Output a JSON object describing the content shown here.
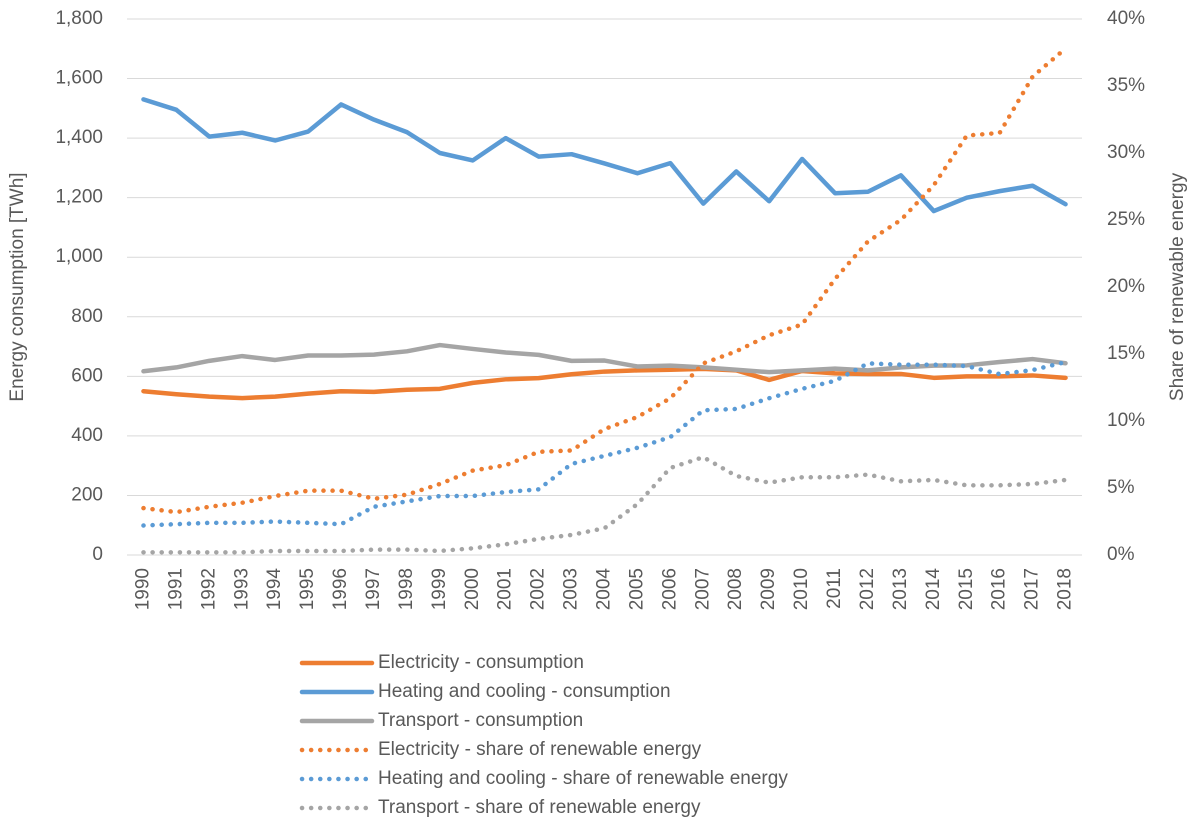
{
  "chart_data": {
    "type": "line",
    "y_label": "Energy consumption [TWh]",
    "y2_label": "Share of renewable energy",
    "categories": [
      "1990",
      "1991",
      "1992",
      "1993",
      "1994",
      "1995",
      "1996",
      "1997",
      "1998",
      "1999",
      "2000",
      "2001",
      "2002",
      "2003",
      "2004",
      "2005",
      "2006",
      "2007",
      "2008",
      "2009",
      "2010",
      "2011",
      "2012",
      "2013",
      "2014",
      "2015",
      "2016",
      "2017",
      "2018"
    ],
    "ylim": [
      0,
      1800
    ],
    "yticks": [
      0,
      200,
      400,
      600,
      800,
      {
        "value": 1000,
        "label": "1,000"
      },
      {
        "value": 1200,
        "label": "1,200"
      },
      {
        "value": 1400,
        "label": "1,400"
      },
      {
        "value": 1600,
        "label": "1,600"
      },
      {
        "value": 1800,
        "label": "1,800"
      }
    ],
    "y2lim": [
      0,
      40
    ],
    "y2ticks": [
      {
        "value": 0,
        "label": "0%"
      },
      {
        "value": 5,
        "label": "5%"
      },
      {
        "value": 10,
        "label": "10%"
      },
      {
        "value": 15,
        "label": "15%"
      },
      {
        "value": 20,
        "label": "20%"
      },
      {
        "value": 25,
        "label": "25%"
      },
      {
        "value": 30,
        "label": "30%"
      },
      {
        "value": 35,
        "label": "35%"
      },
      {
        "value": 40,
        "label": "40%"
      }
    ],
    "grid": true,
    "legend": "bottom",
    "series": [
      {
        "name": "Electricity - consumption",
        "color": "#ed7d31",
        "line_style": "solid",
        "values": [
          550,
          540,
          532,
          527,
          532,
          542,
          550,
          548,
          555,
          558,
          578,
          590,
          594,
          607,
          616,
          620,
          622,
          625,
          620,
          588,
          618,
          610,
          608,
          608,
          595,
          600,
          600,
          603,
          595
        ]
      },
      {
        "name": "Heating and cooling - consumption",
        "color": "#5b9bd5",
        "line_style": "solid",
        "values": [
          1530,
          1495,
          1405,
          1418,
          1392,
          1422,
          1513,
          1462,
          1420,
          1350,
          1325,
          1400,
          1338,
          1346,
          1315,
          1282,
          1316,
          1180,
          1288,
          1188,
          1330,
          1215,
          1220,
          1275,
          1155,
          1200,
          1222,
          1240,
          1178
        ]
      },
      {
        "name": "Transport - consumption",
        "color": "#a5a5a5",
        "line_style": "solid",
        "values": [
          617,
          630,
          652,
          668,
          655,
          670,
          670,
          673,
          684,
          705,
          692,
          680,
          672,
          652,
          653,
          633,
          636,
          630,
          622,
          614,
          620,
          626,
          620,
          630,
          636,
          637,
          648,
          658,
          644
        ]
      },
      {
        "name": "Electricity - share of renewable energy",
        "color": "#ed7d31",
        "line_style": "dotted",
        "axis": "y2",
        "values": [
          3.5,
          3.2,
          3.6,
          3.9,
          4.4,
          4.8,
          4.8,
          4.2,
          4.5,
          5.3,
          6.3,
          6.7,
          7.7,
          7.8,
          9.4,
          10.3,
          11.7,
          14.3,
          15.2,
          16.4,
          17.2,
          20.6,
          23.4,
          25.0,
          27.6,
          31.3,
          31.5,
          35.7,
          37.8
        ]
      },
      {
        "name": "Heating and cooling - share of renewable energy",
        "color": "#5b9bd5",
        "line_style": "dotted",
        "axis": "y2",
        "values": [
          2.2,
          2.3,
          2.4,
          2.4,
          2.5,
          2.4,
          2.3,
          3.6,
          4.0,
          4.4,
          4.4,
          4.7,
          4.9,
          6.8,
          7.4,
          8.0,
          8.8,
          10.8,
          10.9,
          11.7,
          12.4,
          13.0,
          14.3,
          14.2,
          14.2,
          14.1,
          13.5,
          13.8,
          14.4
        ]
      },
      {
        "name": "Transport - share of renewable energy",
        "color": "#a5a5a5",
        "line_style": "dotted",
        "axis": "y2",
        "values": [
          0.2,
          0.2,
          0.2,
          0.2,
          0.3,
          0.3,
          0.3,
          0.4,
          0.4,
          0.3,
          0.5,
          0.8,
          1.2,
          1.5,
          2.0,
          3.8,
          6.5,
          7.3,
          5.9,
          5.4,
          5.8,
          5.8,
          6.0,
          5.5,
          5.6,
          5.2,
          5.2,
          5.3,
          5.6
        ]
      }
    ]
  }
}
